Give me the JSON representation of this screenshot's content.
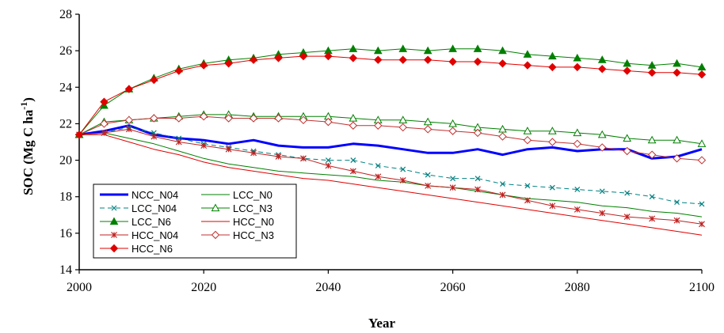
{
  "chart_data": {
    "type": "line",
    "xlabel": "Year",
    "ylabel": "SOC (Mg C ha",
    "ylabel_sup": "-1",
    "ylabel_tail": ")",
    "xlim": [
      2000,
      2100
    ],
    "ylim": [
      14,
      28
    ],
    "xticks": [
      2000,
      2020,
      2040,
      2060,
      2080,
      2100
    ],
    "yticks": [
      14,
      16,
      18,
      20,
      22,
      24,
      26,
      28
    ],
    "grid": false,
    "legend": "bottom-left",
    "series": [
      {
        "name": "NCC_N04",
        "color": "#0000ff",
        "marker": "none",
        "width": 3,
        "x": [
          2000,
          2004,
          2008,
          2012,
          2016,
          2020,
          2024,
          2028,
          2032,
          2036,
          2040,
          2044,
          2048,
          2052,
          2056,
          2060,
          2064,
          2068,
          2072,
          2076,
          2080,
          2084,
          2088,
          2092,
          2096,
          2100
        ],
        "y": [
          21.4,
          21.6,
          21.9,
          21.4,
          21.2,
          21.1,
          20.9,
          21.1,
          20.8,
          20.7,
          20.7,
          20.9,
          20.8,
          20.6,
          20.4,
          20.4,
          20.6,
          20.3,
          20.6,
          20.7,
          20.5,
          20.6,
          20.6,
          20.1,
          20.2,
          20.6
        ]
      },
      {
        "name": "LCC_N0",
        "color": "#008000",
        "marker": "none",
        "width": 1,
        "x": [
          2000,
          2004,
          2008,
          2012,
          2016,
          2020,
          2024,
          2028,
          2032,
          2036,
          2040,
          2044,
          2048,
          2052,
          2056,
          2060,
          2064,
          2068,
          2072,
          2076,
          2080,
          2084,
          2088,
          2092,
          2096,
          2100
        ],
        "y": [
          21.4,
          21.5,
          21.2,
          20.9,
          20.5,
          20.1,
          19.8,
          19.6,
          19.4,
          19.3,
          19.2,
          19.1,
          18.9,
          18.8,
          18.6,
          18.5,
          18.3,
          18.1,
          17.9,
          17.8,
          17.7,
          17.5,
          17.4,
          17.2,
          17.1,
          16.9
        ]
      },
      {
        "name": "LCC_N04",
        "color": "#008080",
        "marker": "x",
        "dash": "6,4",
        "width": 1,
        "x": [
          2000,
          2004,
          2008,
          2012,
          2016,
          2020,
          2024,
          2028,
          2032,
          2036,
          2040,
          2044,
          2048,
          2052,
          2056,
          2060,
          2064,
          2068,
          2072,
          2076,
          2080,
          2084,
          2088,
          2092,
          2096,
          2100
        ],
        "y": [
          21.4,
          21.5,
          21.8,
          21.5,
          21.2,
          20.9,
          20.7,
          20.5,
          20.3,
          20.1,
          20.0,
          20.0,
          19.7,
          19.5,
          19.2,
          19.0,
          19.0,
          18.7,
          18.6,
          18.5,
          18.4,
          18.3,
          18.2,
          18.0,
          17.7,
          17.6
        ]
      },
      {
        "name": "LCC_N3",
        "color": "#008000",
        "marker": "triangle-open",
        "width": 1,
        "x": [
          2000,
          2004,
          2008,
          2012,
          2016,
          2020,
          2024,
          2028,
          2032,
          2036,
          2040,
          2044,
          2048,
          2052,
          2056,
          2060,
          2064,
          2068,
          2072,
          2076,
          2080,
          2084,
          2088,
          2092,
          2096,
          2100
        ],
        "y": [
          21.4,
          22.1,
          22.2,
          22.3,
          22.4,
          22.5,
          22.5,
          22.4,
          22.4,
          22.4,
          22.4,
          22.3,
          22.2,
          22.2,
          22.1,
          22.0,
          21.8,
          21.7,
          21.6,
          21.6,
          21.5,
          21.4,
          21.2,
          21.1,
          21.1,
          20.9
        ]
      },
      {
        "name": "LCC_N6",
        "color": "#008000",
        "marker": "triangle",
        "width": 1,
        "x": [
          2000,
          2004,
          2008,
          2012,
          2016,
          2020,
          2024,
          2028,
          2032,
          2036,
          2040,
          2044,
          2048,
          2052,
          2056,
          2060,
          2064,
          2068,
          2072,
          2076,
          2080,
          2084,
          2088,
          2092,
          2096,
          2100
        ],
        "y": [
          21.4,
          23.0,
          23.9,
          24.5,
          25.0,
          25.3,
          25.5,
          25.6,
          25.8,
          25.9,
          26.0,
          26.1,
          26.0,
          26.1,
          26.0,
          26.1,
          26.1,
          26.0,
          25.8,
          25.7,
          25.6,
          25.5,
          25.3,
          25.2,
          25.3,
          25.1
        ]
      },
      {
        "name": "HCC_N0",
        "color": "#e00000",
        "marker": "none",
        "width": 1,
        "x": [
          2000,
          2004,
          2008,
          2012,
          2016,
          2020,
          2024,
          2028,
          2032,
          2036,
          2040,
          2044,
          2048,
          2052,
          2056,
          2060,
          2064,
          2068,
          2072,
          2076,
          2080,
          2084,
          2088,
          2092,
          2096,
          2100
        ],
        "y": [
          21.4,
          21.4,
          21.0,
          20.6,
          20.3,
          19.9,
          19.6,
          19.4,
          19.2,
          19.0,
          18.9,
          18.7,
          18.5,
          18.3,
          18.1,
          17.9,
          17.7,
          17.5,
          17.3,
          17.1,
          16.9,
          16.7,
          16.5,
          16.3,
          16.1,
          15.9
        ]
      },
      {
        "name": "HCC_N04",
        "color": "#c02020",
        "marker": "asterisk",
        "width": 1,
        "x": [
          2000,
          2004,
          2008,
          2012,
          2016,
          2020,
          2024,
          2028,
          2032,
          2036,
          2040,
          2044,
          2048,
          2052,
          2056,
          2060,
          2064,
          2068,
          2072,
          2076,
          2080,
          2084,
          2088,
          2092,
          2096,
          2100
        ],
        "y": [
          21.4,
          21.5,
          21.7,
          21.3,
          21.0,
          20.8,
          20.6,
          20.4,
          20.2,
          20.1,
          19.7,
          19.4,
          19.1,
          18.9,
          18.6,
          18.5,
          18.4,
          18.1,
          17.8,
          17.5,
          17.3,
          17.1,
          16.9,
          16.8,
          16.7,
          16.5
        ]
      },
      {
        "name": "HCC_N3",
        "color": "#c03030",
        "marker": "diamond-open",
        "width": 1,
        "x": [
          2000,
          2004,
          2008,
          2012,
          2016,
          2020,
          2024,
          2028,
          2032,
          2036,
          2040,
          2044,
          2048,
          2052,
          2056,
          2060,
          2064,
          2068,
          2072,
          2076,
          2080,
          2084,
          2088,
          2092,
          2096,
          2100
        ],
        "y": [
          21.4,
          22.0,
          22.2,
          22.3,
          22.3,
          22.4,
          22.3,
          22.3,
          22.3,
          22.2,
          22.1,
          21.9,
          21.9,
          21.8,
          21.7,
          21.6,
          21.5,
          21.3,
          21.1,
          21.0,
          20.9,
          20.7,
          20.5,
          20.3,
          20.1,
          20.0
        ]
      },
      {
        "name": "HCC_N6",
        "color": "#e00000",
        "marker": "diamond",
        "width": 1,
        "x": [
          2000,
          2004,
          2008,
          2012,
          2016,
          2020,
          2024,
          2028,
          2032,
          2036,
          2040,
          2044,
          2048,
          2052,
          2056,
          2060,
          2064,
          2068,
          2072,
          2076,
          2080,
          2084,
          2088,
          2092,
          2096,
          2100
        ],
        "y": [
          21.4,
          23.2,
          23.9,
          24.4,
          24.9,
          25.2,
          25.3,
          25.5,
          25.6,
          25.7,
          25.7,
          25.6,
          25.5,
          25.5,
          25.5,
          25.4,
          25.4,
          25.3,
          25.2,
          25.1,
          25.1,
          25.0,
          24.9,
          24.8,
          24.8,
          24.7
        ]
      }
    ]
  }
}
